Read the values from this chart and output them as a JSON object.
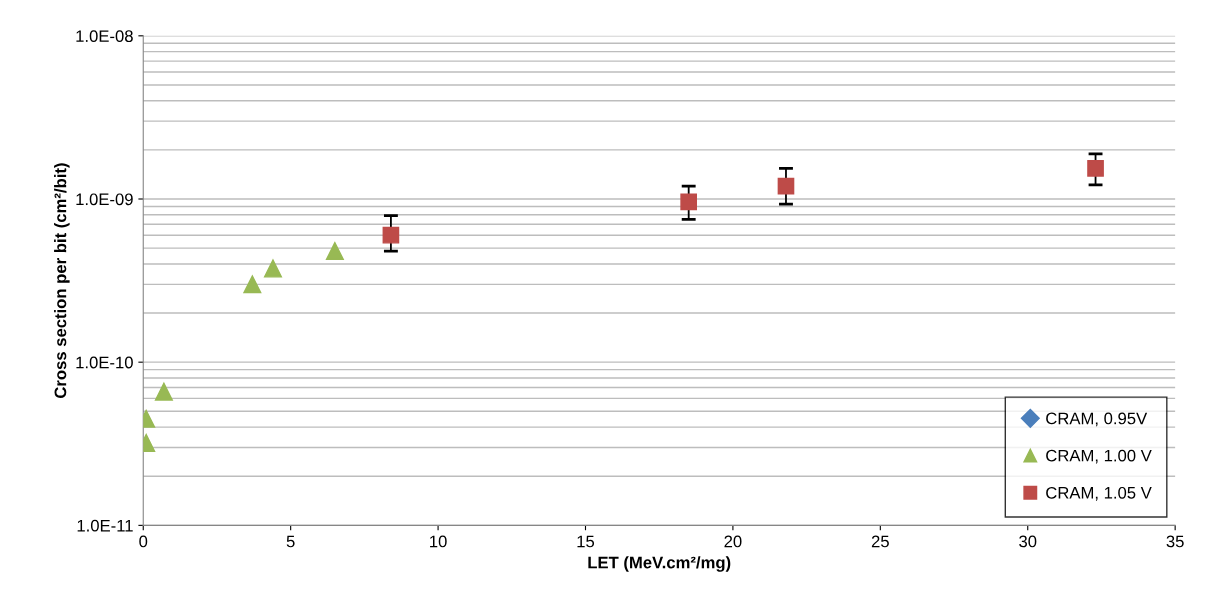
{
  "chart_data": {
    "type": "scatter",
    "xlabel": "LET (MeV.cm²/mg)",
    "ylabel": "Cross section per bit (cm²/bit)",
    "log": "y",
    "xlim": [
      0,
      35
    ],
    "xticks": [
      0,
      5,
      10,
      15,
      20,
      25,
      30,
      35
    ],
    "ylim": [
      1e-11,
      1e-08
    ],
    "yticks": [
      {
        "value": 1e-11,
        "label": "1.0E-11"
      },
      {
        "value": 1e-10,
        "label": "1.0E-10"
      },
      {
        "value": 1e-09,
        "label": "1.0E-09"
      },
      {
        "value": 1e-08,
        "label": "1.0E-08"
      }
    ],
    "grid": "y",
    "legend": "bottom right",
    "series": [
      {
        "name": "CRAM, 0.95V",
        "color": "#4a7ebb",
        "marker": "diamond"
      },
      {
        "name": "CRAM, 1.00 V",
        "color": "#98b954",
        "marker": "triangle",
        "x": [
          0.1,
          0.1,
          0.7,
          3.7,
          4.4,
          6.5
        ],
        "values": [
          4.5e-11,
          3.2e-11,
          6.6e-11,
          3e-10,
          3.75e-10,
          4.8e-10
        ]
      },
      {
        "name": "CRAM, 1.05 V",
        "color": "#be4b48",
        "marker": "square",
        "x": [
          8.4,
          18.5,
          21.8,
          32.3
        ],
        "values": [
          6e-10,
          9.6e-10,
          1.2e-09,
          1.54e-09
        ],
        "errors": [
          [
            4.8e-10,
            7.9e-10
          ],
          [
            7.5e-10,
            1.2e-09
          ],
          [
            9.3e-10,
            1.54e-09
          ],
          [
            1.22e-09,
            1.89e-09
          ]
        ]
      }
    ]
  }
}
